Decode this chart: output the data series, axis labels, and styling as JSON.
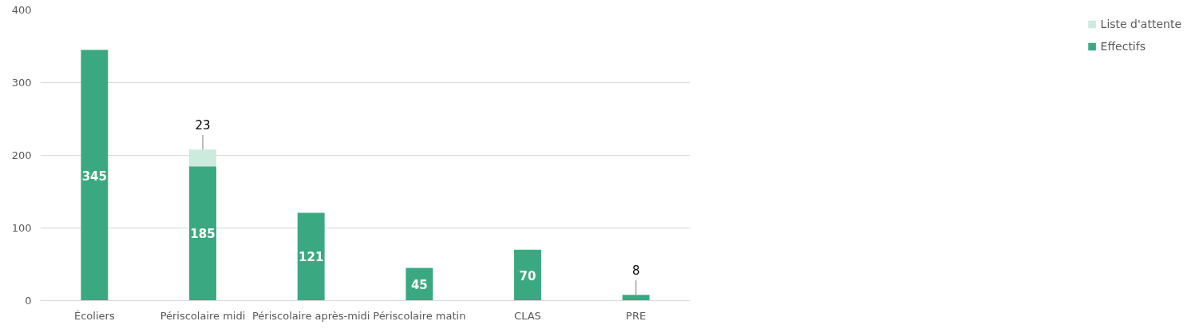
{
  "chart_data": {
    "type": "bar",
    "stacked": true,
    "categories": [
      "Écoliers",
      "Périscolaire midi",
      "Périscolaire après-midi",
      "Périscolaire matin",
      "CLAS",
      "PRE"
    ],
    "series": [
      {
        "name": "Effectifs",
        "color": "#3aa981",
        "values": [
          345,
          185,
          121,
          45,
          70,
          8
        ]
      },
      {
        "name": "Liste d'attente",
        "color": "#cdeadf",
        "values": [
          null,
          23,
          null,
          null,
          null,
          null
        ]
      }
    ],
    "ylim": [
      0,
      400
    ],
    "yticks": [
      0,
      100,
      200,
      300,
      400
    ],
    "grid": "y",
    "legend": "right",
    "data_labels": true
  }
}
